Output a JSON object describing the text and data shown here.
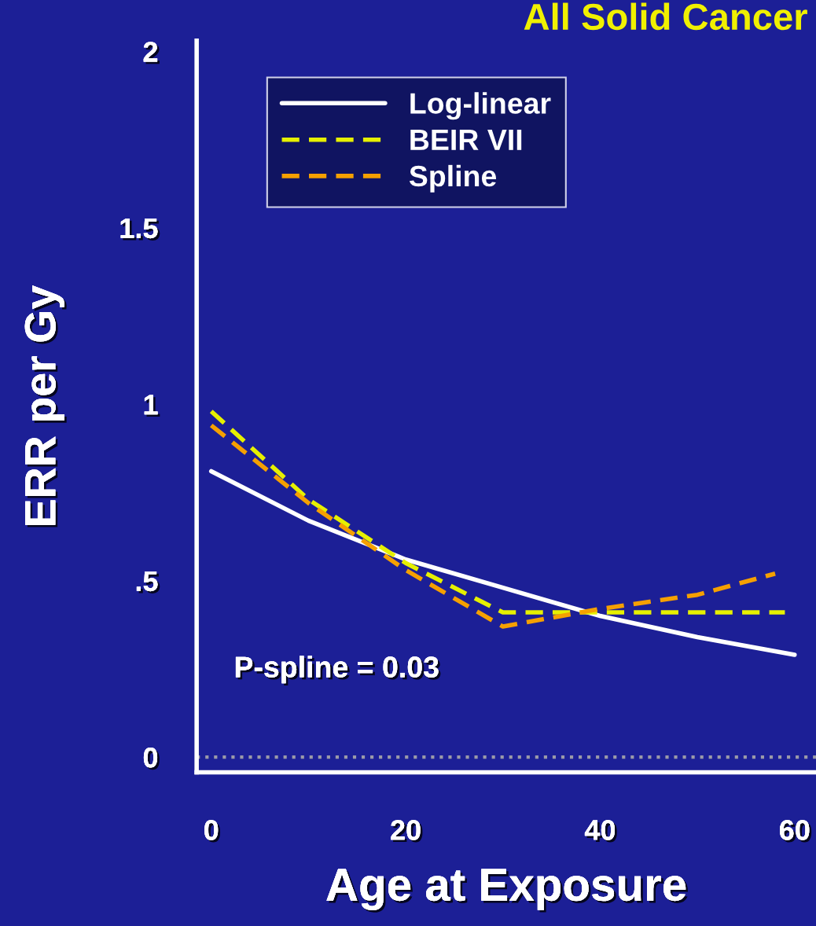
{
  "chart_data": {
    "type": "line",
    "title": "All Solid Cancer",
    "xlabel": "Age at Exposure",
    "ylabel": "ERR per Gy",
    "xlim": [
      -1.5,
      62.2
    ],
    "ylim": [
      -0.043,
      2.03
    ],
    "xticks": [
      0,
      20,
      40,
      60
    ],
    "yticks": [
      0,
      {
        "value": 0.5,
        "label": ".5"
      },
      1,
      1.5,
      2
    ],
    "series": [
      {
        "name": "Log-linear",
        "color": "#ffffff",
        "line_style": "solid",
        "x": [
          0,
          10,
          20,
          30,
          40,
          50,
          60
        ],
        "values": [
          0.81,
          0.67,
          0.56,
          0.48,
          0.4,
          0.34,
          0.29
        ]
      },
      {
        "name": "BEIR VII",
        "color": "#e6f000",
        "line_style": "dashed",
        "x": [
          0,
          10,
          20,
          30,
          45,
          59
        ],
        "values": [
          0.98,
          0.73,
          0.55,
          0.41,
          0.41,
          0.41
        ]
      },
      {
        "name": "Spline",
        "color": "#f5a000",
        "line_style": "dashed",
        "x": [
          0,
          10,
          20,
          30,
          40,
          50,
          58
        ],
        "values": [
          0.94,
          0.72,
          0.53,
          0.37,
          0.42,
          0.46,
          0.52
        ]
      }
    ],
    "ref_lines": [
      {
        "axis": "y",
        "value": 0,
        "color": "#9a9aa8",
        "line_style": "dotted"
      }
    ],
    "annotations": [
      "P-spline = 0.03"
    ],
    "legend": "top left",
    "grid": false,
    "marker": "none"
  }
}
